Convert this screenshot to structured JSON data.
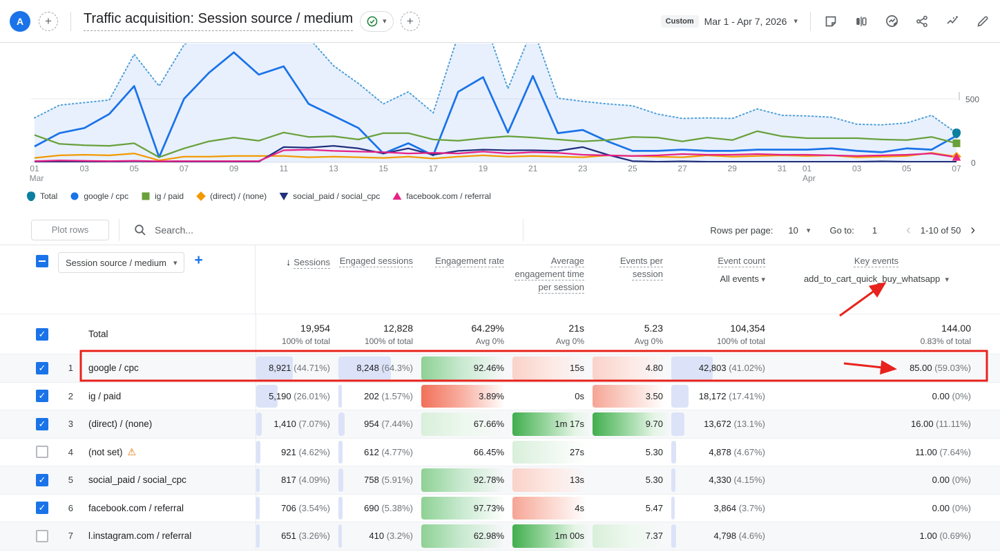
{
  "header": {
    "avatar_letter": "A",
    "title": "Traffic acquisition: Session source / medium",
    "custom_badge": "Custom",
    "date_range": "Mar 1 - Apr 7, 2026",
    "icons": [
      "note-icon",
      "ab-compare-icon",
      "insights-icon",
      "share-icon",
      "sparkline-icon",
      "edit-pencil-icon"
    ]
  },
  "chart_data": {
    "type": "line",
    "title": "Sessions by session source / medium over time",
    "x_start": "Mar 1",
    "x_end": "Apr 7, 2026",
    "ylim": [
      0,
      500
    ],
    "y_ticks": [
      "500",
      "0"
    ],
    "grid": true,
    "legend_position": "bottom",
    "area_fill": "rgba(66,133,244,0.12)",
    "x_ticks": [
      {
        "i": 0,
        "l": "01",
        "sub": "Mar"
      },
      {
        "i": 2,
        "l": "03"
      },
      {
        "i": 4,
        "l": "05"
      },
      {
        "i": 6,
        "l": "07"
      },
      {
        "i": 8,
        "l": "09"
      },
      {
        "i": 10,
        "l": "11"
      },
      {
        "i": 12,
        "l": "13"
      },
      {
        "i": 14,
        "l": "15"
      },
      {
        "i": 16,
        "l": "17"
      },
      {
        "i": 18,
        "l": "19"
      },
      {
        "i": 20,
        "l": "21"
      },
      {
        "i": 22,
        "l": "23"
      },
      {
        "i": 24,
        "l": "25"
      },
      {
        "i": 26,
        "l": "27"
      },
      {
        "i": 28,
        "l": "29"
      },
      {
        "i": 30,
        "l": "31"
      },
      {
        "i": 31,
        "l": "01",
        "sub": "Apr"
      },
      {
        "i": 33,
        "l": "03"
      },
      {
        "i": 35,
        "l": "05"
      },
      {
        "i": 37,
        "l": "07"
      }
    ],
    "series": [
      {
        "name": "Total",
        "shape": "pin",
        "color": "#4e9fd8",
        "legend_color": "#0d7fa0",
        "style": "dotted-area",
        "width": 2,
        "values": [
          350,
          450,
          470,
          490,
          850,
          600,
          925,
          1050,
          1100,
          1080,
          1050,
          980,
          760,
          620,
          460,
          555,
          390,
          1000,
          1150,
          580,
          1060,
          505,
          480,
          460,
          445,
          380,
          345,
          350,
          345,
          420,
          370,
          365,
          355,
          300,
          295,
          310,
          370,
          230
        ]
      },
      {
        "name": "google / cpc",
        "shape": "circle",
        "color": "#1a73e8",
        "style": "solid",
        "width": 2.75,
        "values": [
          125,
          230,
          270,
          380,
          600,
          40,
          500,
          705,
          865,
          690,
          755,
          460,
          365,
          270,
          70,
          150,
          55,
          555,
          670,
          235,
          680,
          230,
          255,
          165,
          90,
          90,
          100,
          90,
          90,
          100,
          100,
          100,
          110,
          90,
          80,
          110,
          100,
          210
        ]
      },
      {
        "name": "ig / paid",
        "shape": "square",
        "color": "#68a03a",
        "style": "solid",
        "width": 2.25,
        "values": [
          215,
          145,
          135,
          130,
          150,
          40,
          110,
          165,
          195,
          170,
          235,
          200,
          205,
          180,
          230,
          230,
          180,
          170,
          190,
          205,
          195,
          180,
          165,
          175,
          200,
          195,
          165,
          195,
          175,
          245,
          205,
          190,
          190,
          190,
          180,
          175,
          200,
          150
        ]
      },
      {
        "name": "(direct) / (none)",
        "shape": "diamond",
        "color": "#f29900",
        "style": "solid",
        "width": 2.25,
        "values": [
          35,
          55,
          60,
          55,
          70,
          15,
          45,
          45,
          50,
          50,
          50,
          40,
          45,
          40,
          35,
          45,
          30,
          45,
          55,
          45,
          50,
          45,
          40,
          55,
          50,
          45,
          40,
          55,
          45,
          50,
          55,
          50,
          55,
          40,
          45,
          50,
          75,
          45
        ]
      },
      {
        "name": "social_paid / social_cpc",
        "shape": "triangle-down",
        "color": "#20307c",
        "style": "solid",
        "width": 2.25,
        "values": [
          5,
          5,
          5,
          5,
          8,
          5,
          5,
          5,
          5,
          5,
          120,
          115,
          130,
          110,
          70,
          110,
          60,
          90,
          100,
          95,
          95,
          90,
          120,
          60,
          10,
          5,
          8,
          5,
          5,
          5,
          5,
          5,
          5,
          5,
          8,
          5,
          5,
          5
        ]
      },
      {
        "name": "facebook.com / referral",
        "shape": "triangle-up",
        "color": "#e62286",
        "style": "solid",
        "width": 2.25,
        "values": [
          10,
          15,
          12,
          10,
          12,
          8,
          10,
          10,
          10,
          10,
          95,
          100,
          90,
          85,
          80,
          70,
          75,
          70,
          85,
          70,
          80,
          75,
          60,
          55,
          50,
          55,
          65,
          60,
          60,
          65,
          60,
          60,
          55,
          50,
          55,
          60,
          70,
          40
        ]
      }
    ]
  },
  "toolbar": {
    "plot_rows_label": "Plot rows",
    "search_placeholder": "Search...",
    "rows_per_page_label": "Rows per page:",
    "rows_per_page_value": "10",
    "goto_label": "Go to:",
    "goto_value": "1",
    "range_label": "1-10 of 50"
  },
  "table": {
    "dimension": "Session source / medium",
    "columns": {
      "sessions": "Sessions",
      "engaged": "Engaged sessions",
      "rate": "Engagement rate",
      "avg_time": "Average engagement time per session",
      "eps": "Events per session",
      "event_count": "Event count",
      "event_count_filter": "All events",
      "key_events": "Key events",
      "key_events_filter": "add_to_cart_quick_buy_whatsapp"
    },
    "total": {
      "label": "Total",
      "sessions": {
        "v": "19,954",
        "sub": "100% of total"
      },
      "engaged": {
        "v": "12,828",
        "sub": "100% of total"
      },
      "rate": {
        "v": "64.29%",
        "sub": "Avg 0%"
      },
      "time": {
        "v": "21s",
        "sub": "Avg 0%"
      },
      "eps": {
        "v": "5.23",
        "sub": "Avg 0%"
      },
      "count": {
        "v": "104,354",
        "sub": "100% of total"
      },
      "key": {
        "v": "144.00",
        "sub": "0.83% of total"
      }
    },
    "rows": [
      {
        "num": "1",
        "name": "google / cpc",
        "checked": true,
        "warn": false,
        "sessions": {
          "v": "8,921",
          "s": "44.71%"
        },
        "engaged": {
          "v": "8,248",
          "s": "64.3%"
        },
        "rate": {
          "v": "92.46%",
          "h": "g2"
        },
        "time": {
          "v": "15s",
          "h": "r1"
        },
        "eps": {
          "v": "4.80",
          "h": "r1"
        },
        "count": {
          "v": "42,803",
          "s": "41.02%"
        },
        "key": {
          "v": "85.00",
          "s": "59.03%"
        }
      },
      {
        "num": "2",
        "name": "ig / paid",
        "checked": true,
        "warn": false,
        "sessions": {
          "v": "5,190",
          "s": "26.01%"
        },
        "engaged": {
          "v": "202",
          "s": "1.57%"
        },
        "rate": {
          "v": "3.89%",
          "h": "r3"
        },
        "time": {
          "v": "0s",
          "h": "none"
        },
        "eps": {
          "v": "3.50",
          "h": "r2"
        },
        "count": {
          "v": "18,172",
          "s": "17.41%"
        },
        "key": {
          "v": "0.00",
          "s": "0%"
        }
      },
      {
        "num": "3",
        "name": "(direct) / (none)",
        "checked": true,
        "warn": false,
        "sessions": {
          "v": "1,410",
          "s": "7.07%"
        },
        "engaged": {
          "v": "954",
          "s": "7.44%"
        },
        "rate": {
          "v": "67.66%",
          "h": "g1"
        },
        "time": {
          "v": "1m 17s",
          "h": "g3"
        },
        "eps": {
          "v": "9.70",
          "h": "g3"
        },
        "count": {
          "v": "13,672",
          "s": "13.1%"
        },
        "key": {
          "v": "16.00",
          "s": "11.11%"
        }
      },
      {
        "num": "4",
        "name": "(not set)",
        "checked": false,
        "warn": true,
        "sessions": {
          "v": "921",
          "s": "4.62%"
        },
        "engaged": {
          "v": "612",
          "s": "4.77%"
        },
        "rate": {
          "v": "66.45%",
          "h": "none"
        },
        "time": {
          "v": "27s",
          "h": "g1"
        },
        "eps": {
          "v": "5.30",
          "h": "none"
        },
        "count": {
          "v": "4,878",
          "s": "4.67%"
        },
        "key": {
          "v": "11.00",
          "s": "7.64%"
        }
      },
      {
        "num": "5",
        "name": "social_paid / social_cpc",
        "checked": true,
        "warn": false,
        "sessions": {
          "v": "817",
          "s": "4.09%"
        },
        "engaged": {
          "v": "758",
          "s": "5.91%"
        },
        "rate": {
          "v": "92.78%",
          "h": "g2"
        },
        "time": {
          "v": "13s",
          "h": "r1"
        },
        "eps": {
          "v": "5.30",
          "h": "none"
        },
        "count": {
          "v": "4,330",
          "s": "4.15%"
        },
        "key": {
          "v": "0.00",
          "s": "0%"
        }
      },
      {
        "num": "6",
        "name": "facebook.com / referral",
        "checked": true,
        "warn": false,
        "sessions": {
          "v": "706",
          "s": "3.54%"
        },
        "engaged": {
          "v": "690",
          "s": "5.38%"
        },
        "rate": {
          "v": "97.73%",
          "h": "g2"
        },
        "time": {
          "v": "4s",
          "h": "r2"
        },
        "eps": {
          "v": "5.47",
          "h": "none"
        },
        "count": {
          "v": "3,864",
          "s": "3.7%"
        },
        "key": {
          "v": "0.00",
          "s": "0%"
        }
      },
      {
        "num": "7",
        "name": "l.instagram.com / referral",
        "checked": false,
        "warn": false,
        "sessions": {
          "v": "651",
          "s": "3.26%"
        },
        "engaged": {
          "v": "410",
          "s": "3.2%"
        },
        "rate": {
          "v": "62.98%",
          "h": "g2"
        },
        "time": {
          "v": "1m 00s",
          "h": "g3"
        },
        "eps": {
          "v": "7.37",
          "h": "g1"
        },
        "count": {
          "v": "4,798",
          "s": "4.6%"
        },
        "key": {
          "v": "1.00",
          "s": "0.69%"
        }
      }
    ]
  },
  "annotations": {
    "highlight_color": "#e8221c"
  }
}
